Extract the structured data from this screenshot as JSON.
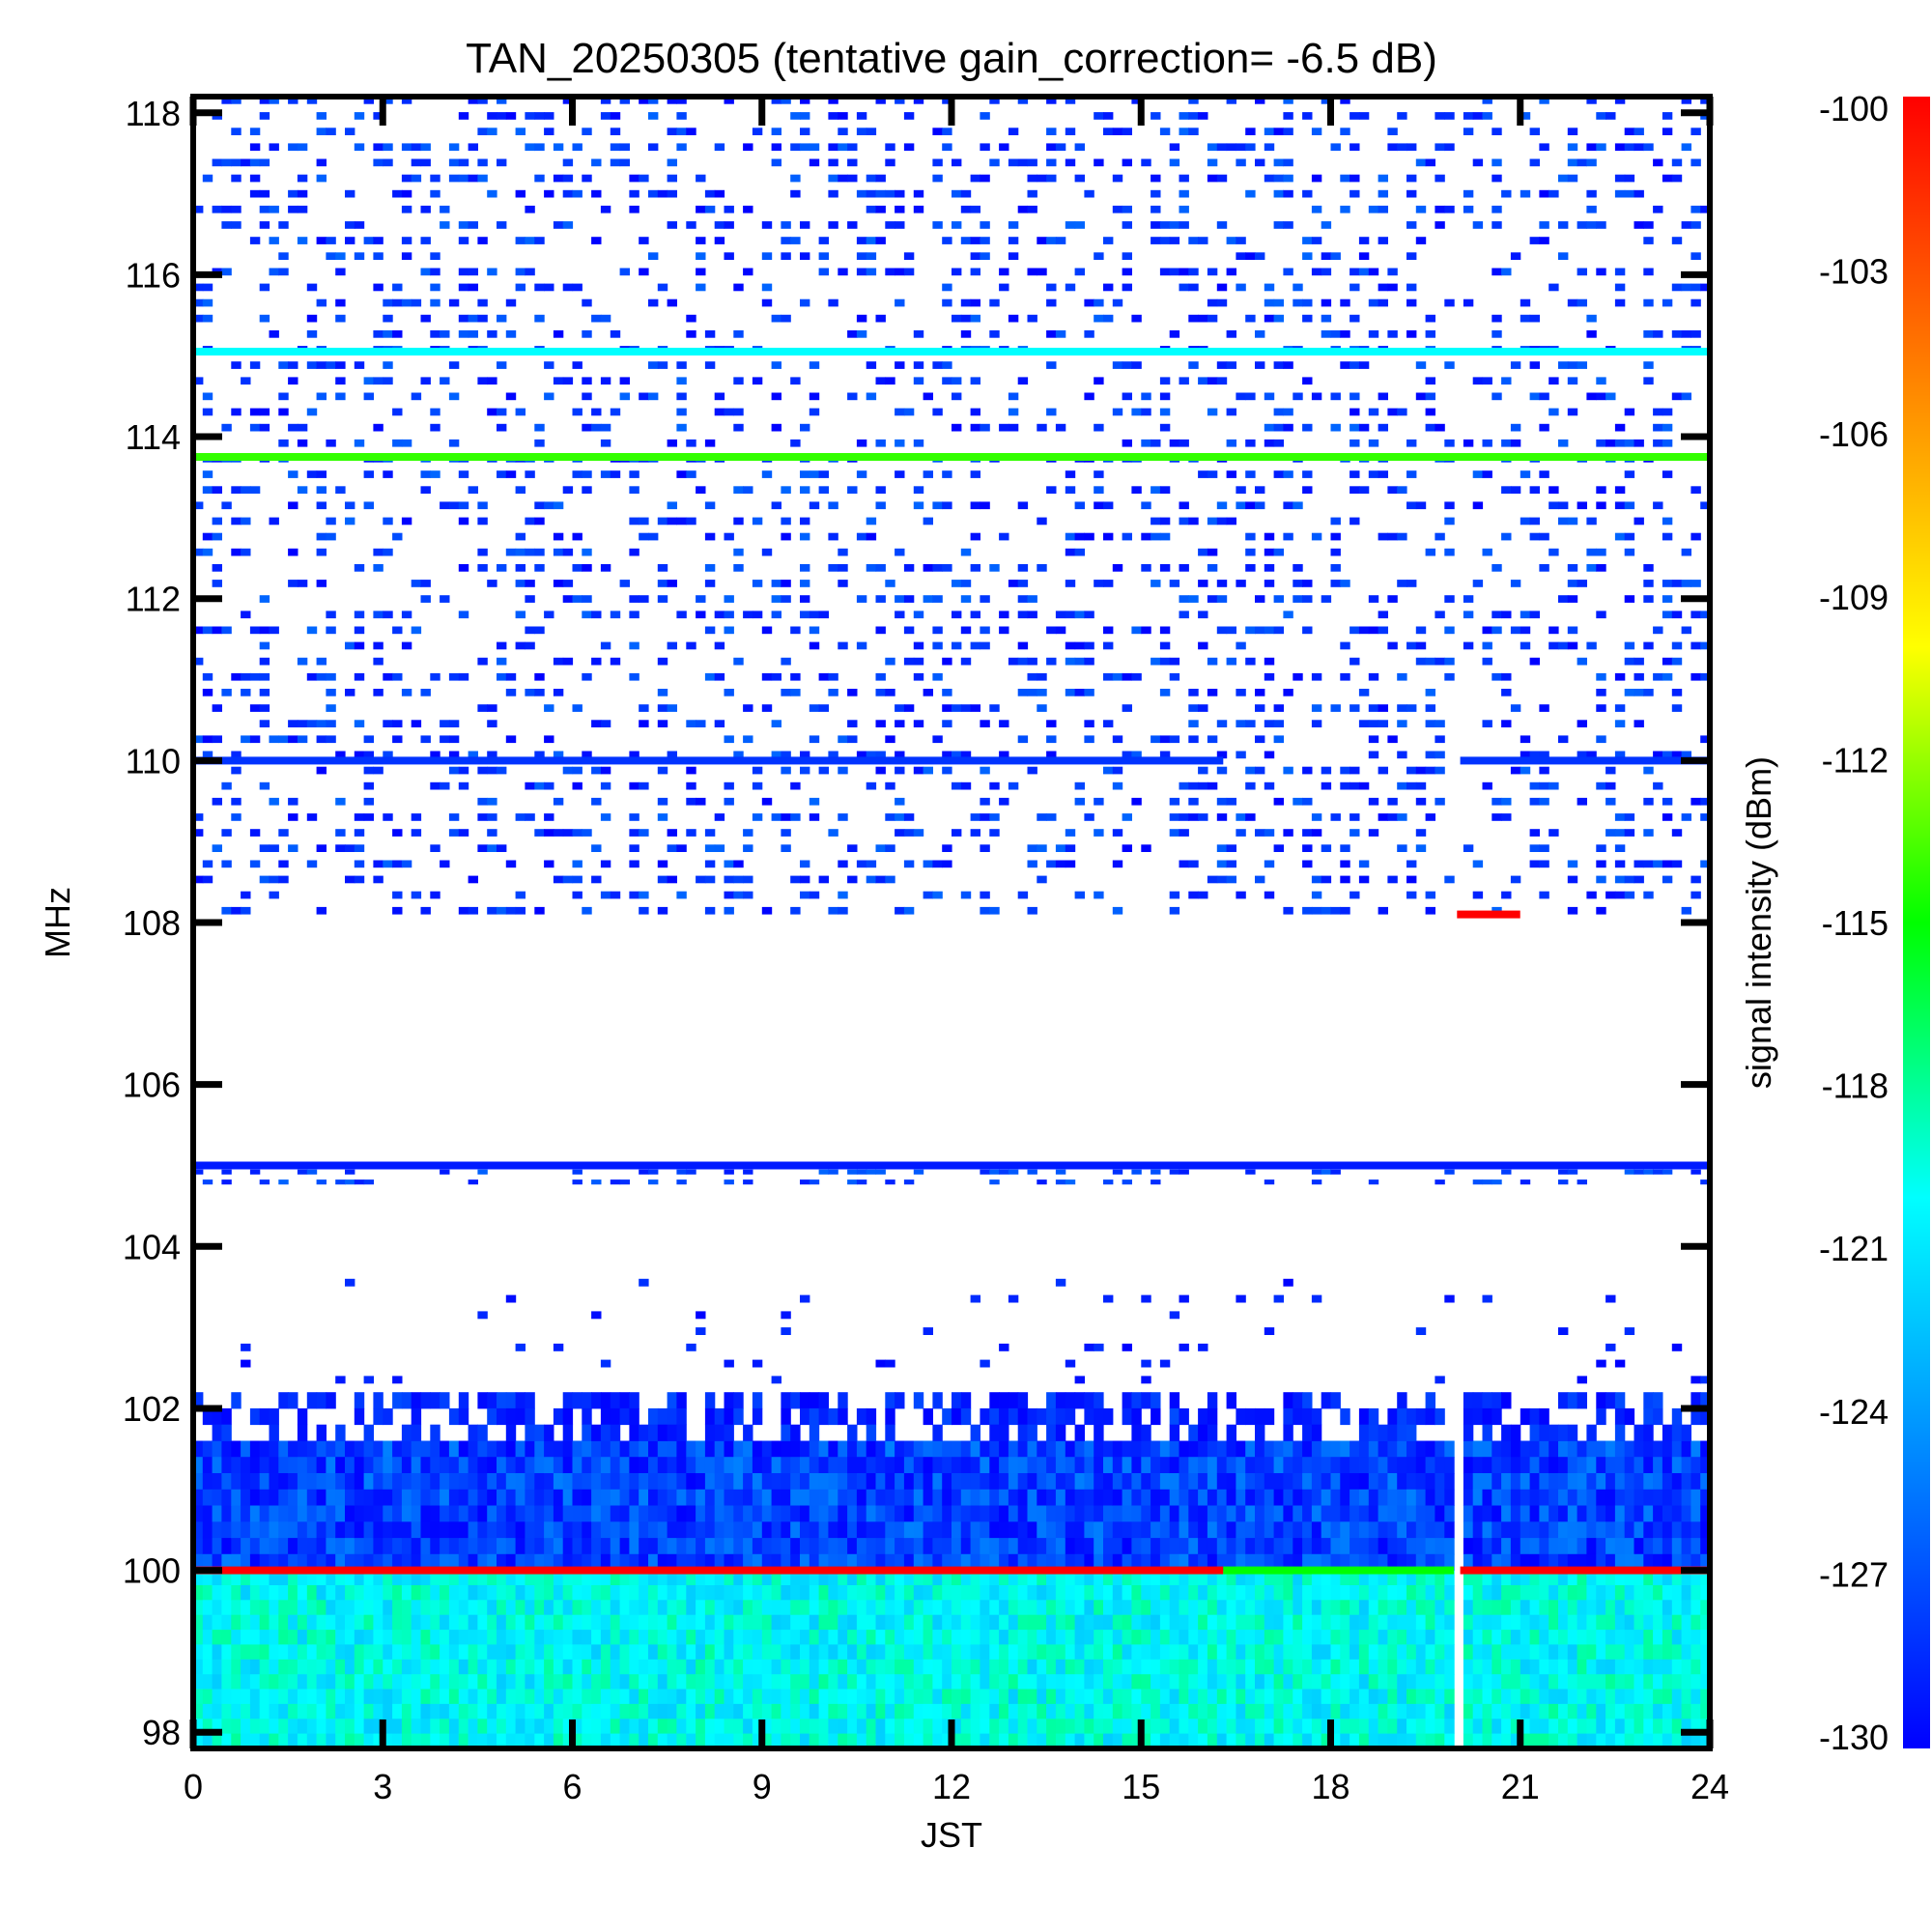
{
  "chart_data": {
    "type": "heatmap",
    "title": "TAN_20250305 (tentative gain_correction= -6.5 dB)",
    "xlabel": "JST",
    "ylabel": "MHz",
    "colorbar_label": "signal intensity (dBm)",
    "xlim": [
      0,
      24
    ],
    "ylim": [
      97.8,
      118.2
    ],
    "clim": [
      -130,
      -100
    ],
    "x_ticks": [
      "0",
      "3",
      "6",
      "9",
      "12",
      "15",
      "18",
      "21",
      "24"
    ],
    "y_ticks": [
      "98",
      "100",
      "102",
      "104",
      "106",
      "108",
      "110",
      "112",
      "114",
      "116",
      "118"
    ],
    "colorbar_ticks": [
      "-100",
      "-103",
      "-106",
      "-109",
      "-112",
      "-115",
      "-118",
      "-121",
      "-124",
      "-127",
      "-130"
    ],
    "colormap": [
      "#0000ff",
      "#0080ff",
      "#00ffff",
      "#00ff00",
      "#ffff00",
      "#ff8000",
      "#ff0000"
    ],
    "data_gap": {
      "x_start": 19.95,
      "x_end": 20.05
    },
    "noise_regions": [
      {
        "y_from": 97.8,
        "y_to": 100.0,
        "dbm_range": [
          -122,
          -118
        ],
        "density": 1.0
      },
      {
        "y_from": 100.0,
        "y_to": 101.6,
        "dbm_range": [
          -130,
          -125
        ],
        "density": 1.0
      },
      {
        "y_from": 101.6,
        "y_to": 102.2,
        "dbm_range": [
          -130,
          -127
        ],
        "density": 0.55
      },
      {
        "y_from": 102.2,
        "y_to": 103.6,
        "dbm_range": [
          -130,
          -128
        ],
        "density": 0.06
      },
      {
        "y_from": 104.7,
        "y_to": 104.95,
        "dbm_range": [
          -129,
          -126
        ],
        "density": 0.25
      },
      {
        "y_from": 108.0,
        "y_to": 118.2,
        "dbm_range": [
          -130,
          -126
        ],
        "density": 0.28
      }
    ],
    "carriers": [
      {
        "freq_mhz": 100.0,
        "x_start": 0.0,
        "x_end": 16.3,
        "dbm": -100
      },
      {
        "freq_mhz": 100.0,
        "x_start": 16.3,
        "x_end": 19.95,
        "dbm": -115
      },
      {
        "freq_mhz": 100.0,
        "x_start": 20.05,
        "x_end": 24.0,
        "dbm": -100
      },
      {
        "freq_mhz": 105.0,
        "x_start": 0.0,
        "x_end": 24.0,
        "dbm": -129
      },
      {
        "freq_mhz": 110.0,
        "x_start": 0.0,
        "x_end": 16.3,
        "dbm": -128
      },
      {
        "freq_mhz": 110.0,
        "x_start": 20.05,
        "x_end": 24.0,
        "dbm": -128
      },
      {
        "freq_mhz": 113.75,
        "x_start": 0.0,
        "x_end": 24.0,
        "dbm": -114
      },
      {
        "freq_mhz": 115.05,
        "x_start": 0.0,
        "x_end": 24.0,
        "dbm": -120
      },
      {
        "freq_mhz": 108.1,
        "x_start": 20.0,
        "x_end": 21.0,
        "dbm": -100
      }
    ]
  }
}
